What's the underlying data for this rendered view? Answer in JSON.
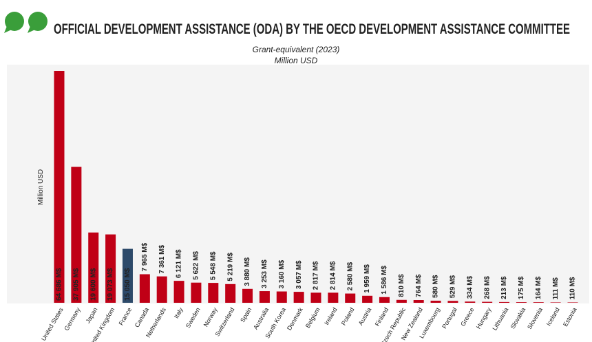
{
  "chart_data": {
    "type": "bar",
    "title": "OFFICIAL DEVELOPMENT ASSISTANCE (ODA) BY THE OECD DEVELOPMENT ASSISTANCE COMMITTEE",
    "subtitle": [
      "Grant-equivalent (2023)",
      "Million USD"
    ],
    "y_label": "Million USD",
    "categories": [
      "United States",
      "Germany",
      "Japan",
      "United Kingdom",
      "France",
      "Canada",
      "Netherlands",
      "Italy",
      "Sweden",
      "Norway",
      "Switzerland",
      "Spain",
      "Australia",
      "South Korea",
      "Denmark",
      "Belgium",
      "Ireland",
      "Poland",
      "Austria",
      "Finland",
      "Czech Republic",
      "New Zealand",
      "Luxembourg",
      "Portugal",
      "Greece",
      "Hungary",
      "Lithuania",
      "Slovakia",
      "Slovenia",
      "Iceland",
      "Estonia"
    ],
    "values": [
      64686,
      37905,
      19600,
      19073,
      15050,
      7965,
      7361,
      6121,
      5622,
      5548,
      5219,
      3880,
      3253,
      3160,
      3057,
      2817,
      2814,
      2580,
      1959,
      1586,
      810,
      764,
      580,
      529,
      334,
      268,
      213,
      175,
      164,
      111,
      110
    ],
    "value_labels": [
      "64 686 M$",
      "37 905 M$",
      "19 600 M$",
      "19 073 M$",
      "15 050 M$",
      "7 965 M$",
      "7 361 M$",
      "6 121 M$",
      "5 622 M$",
      "5 548 M$",
      "5 219 M$",
      "3 880 M$",
      "3 253 M$",
      "3 160 M$",
      "3 057 M$",
      "2 817 M$",
      "2 814 M$",
      "2 580 M$",
      "1 959 M$",
      "1 586 M$",
      "810 M$",
      "764 M$",
      "580 M$",
      "529 M$",
      "334 M$",
      "268 M$",
      "213 M$",
      "175 M$",
      "164 M$",
      "111 M$",
      "110 M$"
    ],
    "colors": [
      "#c00016",
      "#c00016",
      "#c00016",
      "#c00016",
      "#2d4a6a",
      "#c00016",
      "#c00016",
      "#c00016",
      "#c00016",
      "#c00016",
      "#c00016",
      "#c00016",
      "#c00016",
      "#c00016",
      "#c00016",
      "#c00016",
      "#c00016",
      "#c00016",
      "#c00016",
      "#c00016",
      "#c00016",
      "#c00016",
      "#c00016",
      "#c00016",
      "#c00016",
      "#c00016",
      "#c00016",
      "#c00016",
      "#c00016",
      "#c00016",
      "#c00016"
    ]
  }
}
